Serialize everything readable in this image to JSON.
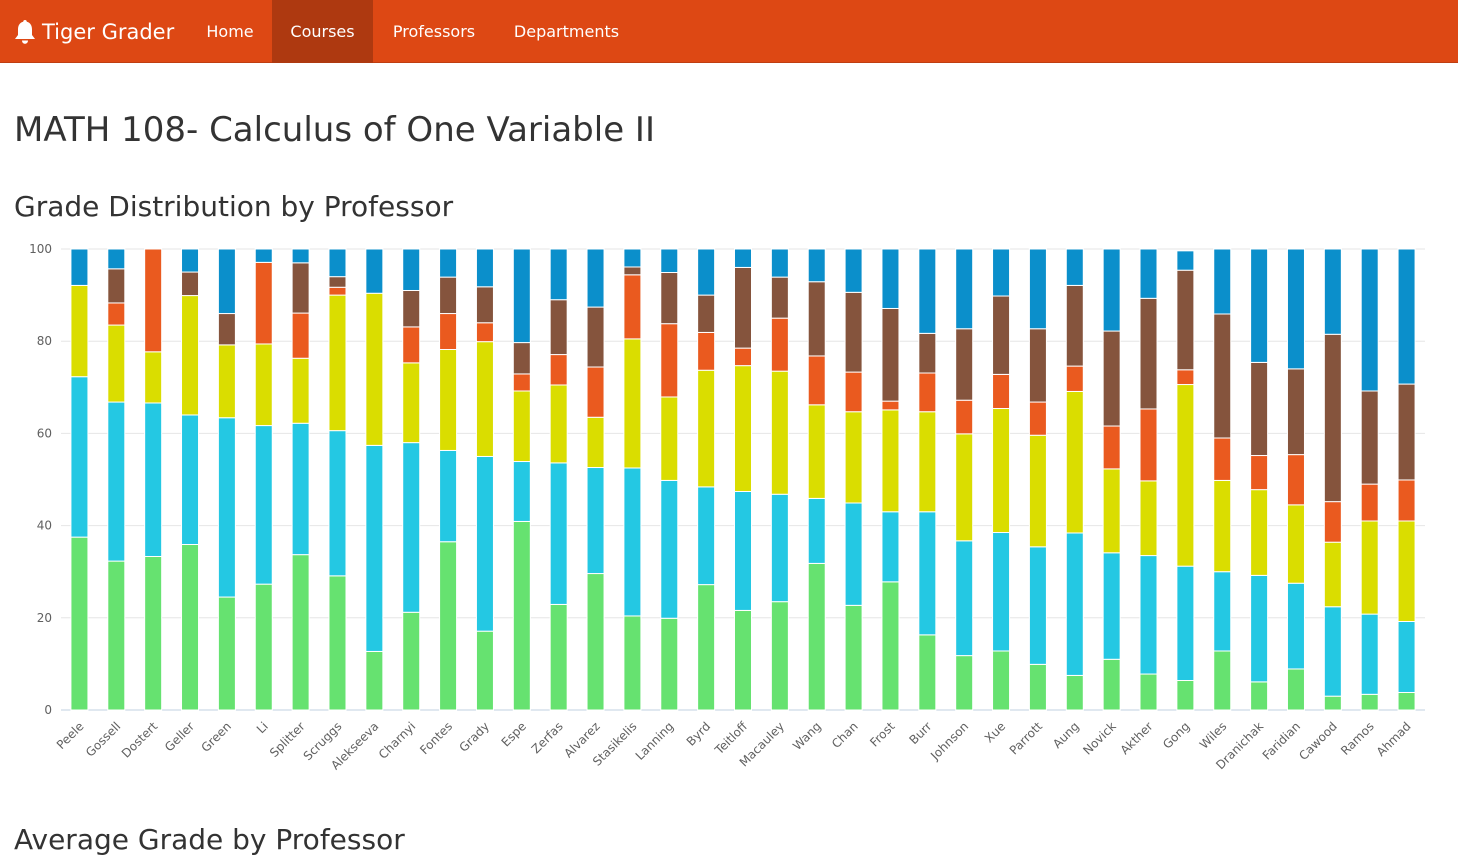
{
  "navbar": {
    "brand": "Tiger Grader",
    "links": [
      {
        "label": "Home",
        "active": false
      },
      {
        "label": "Courses",
        "active": true
      },
      {
        "label": "Professors",
        "active": false
      },
      {
        "label": "Departments",
        "active": false
      }
    ],
    "brand_icon": "bell-icon",
    "bar_color": "#dd4814",
    "active_color": "#ae3910"
  },
  "page": {
    "title": "MATH 108- Calculus of One Variable II",
    "section1": "Grade Distribution by Professor",
    "section2": "Average Grade by Professor"
  },
  "chart_data": {
    "type": "bar",
    "stacked": true,
    "ylim": [
      0,
      100
    ],
    "yticks": [
      0,
      20,
      40,
      60,
      80,
      100
    ],
    "grid": true,
    "legend": "none",
    "categories": [
      "Peele",
      "Gossell",
      "Dostert",
      "Geller",
      "Green",
      "Li",
      "Splitter",
      "Scruggs",
      "Alekseeva",
      "Charnyi",
      "Fontes",
      "Grady",
      "Espe",
      "Zerfas",
      "Alvarez",
      "Stasikelis",
      "Lanning",
      "Byrd",
      "Teitloff",
      "Macauley",
      "Wang",
      "Chan",
      "Frost",
      "Burr",
      "Johnson",
      "Xue",
      "Parrott",
      "Aung",
      "Novick",
      "Akther",
      "Gong",
      "Wiles",
      "Dranichak",
      "Faridian",
      "Cawood",
      "Ramos",
      "Ahmad"
    ],
    "series": [
      {
        "color": "#66e270",
        "values": [
          37.5,
          32.3,
          33.3,
          35.9,
          24.5,
          27.3,
          33.7,
          29.1,
          12.7,
          21.2,
          36.5,
          17.1,
          40.9,
          22.9,
          29.6,
          20.4,
          19.9,
          27.2,
          21.6,
          23.5,
          31.8,
          22.7,
          27.8,
          16.3,
          11.8,
          12.8,
          9.9,
          7.5,
          11.0,
          7.8,
          6.4,
          12.8,
          6.1,
          8.9,
          3.0,
          3.4,
          3.8
        ]
      },
      {
        "color": "#24c8e3",
        "values": [
          34.8,
          34.5,
          33.3,
          28.1,
          38.9,
          34.4,
          28.5,
          31.5,
          44.7,
          36.8,
          19.8,
          37.9,
          13.0,
          30.7,
          23.0,
          32.1,
          29.9,
          21.2,
          25.8,
          23.3,
          14.1,
          22.2,
          15.2,
          26.7,
          24.9,
          25.7,
          25.5,
          30.9,
          23.1,
          25.7,
          24.8,
          17.2,
          23.1,
          18.6,
          19.4,
          17.4,
          15.4
        ]
      },
      {
        "color": "#dadd00",
        "values": [
          19.8,
          16.7,
          11.1,
          25.9,
          15.8,
          17.7,
          14.1,
          29.4,
          33.0,
          17.3,
          21.9,
          24.9,
          15.3,
          16.9,
          10.9,
          28.0,
          18.1,
          25.3,
          27.3,
          26.7,
          20.3,
          19.8,
          22.1,
          21.7,
          23.2,
          26.9,
          24.2,
          30.7,
          18.2,
          16.2,
          39.4,
          19.8,
          18.6,
          17.0,
          14.0,
          20.2,
          21.8
        ]
      },
      {
        "color": "#ea5a1f",
        "values": [
          0,
          4.8,
          22.3,
          0,
          0,
          17.7,
          9.8,
          1.7,
          0,
          7.8,
          7.8,
          4.1,
          3.7,
          6.6,
          10.9,
          13.9,
          15.9,
          8.2,
          3.8,
          11.5,
          10.6,
          8.6,
          1.9,
          8.4,
          7.3,
          7.4,
          7.2,
          5.5,
          9.3,
          15.6,
          3.2,
          9.2,
          7.4,
          10.9,
          8.8,
          8.0,
          8.9
        ]
      },
      {
        "color": "#85543d",
        "values": [
          0,
          7.4,
          0,
          5.1,
          6.8,
          0,
          10.9,
          2.3,
          0,
          7.9,
          7.9,
          7.8,
          6.8,
          11.9,
          13.0,
          1.7,
          11.1,
          8.1,
          17.5,
          8.9,
          16.1,
          17.3,
          20.1,
          8.6,
          15.5,
          17.0,
          15.9,
          17.5,
          20.6,
          24.0,
          21.6,
          26.9,
          20.2,
          18.6,
          36.3,
          20.2,
          20.8
        ]
      },
      {
        "color": "#0b8fcb",
        "values": [
          7.9,
          4.3,
          0,
          5.0,
          14.0,
          2.9,
          3.0,
          6.0,
          9.6,
          9.0,
          6.1,
          8.2,
          20.3,
          11.0,
          12.6,
          3.9,
          5.1,
          10.0,
          4.0,
          6.1,
          7.1,
          9.4,
          12.9,
          18.3,
          17.3,
          10.2,
          17.3,
          7.9,
          17.8,
          10.7,
          4.2,
          14.1,
          24.6,
          26.0,
          18.5,
          30.8,
          29.3
        ]
      }
    ]
  }
}
